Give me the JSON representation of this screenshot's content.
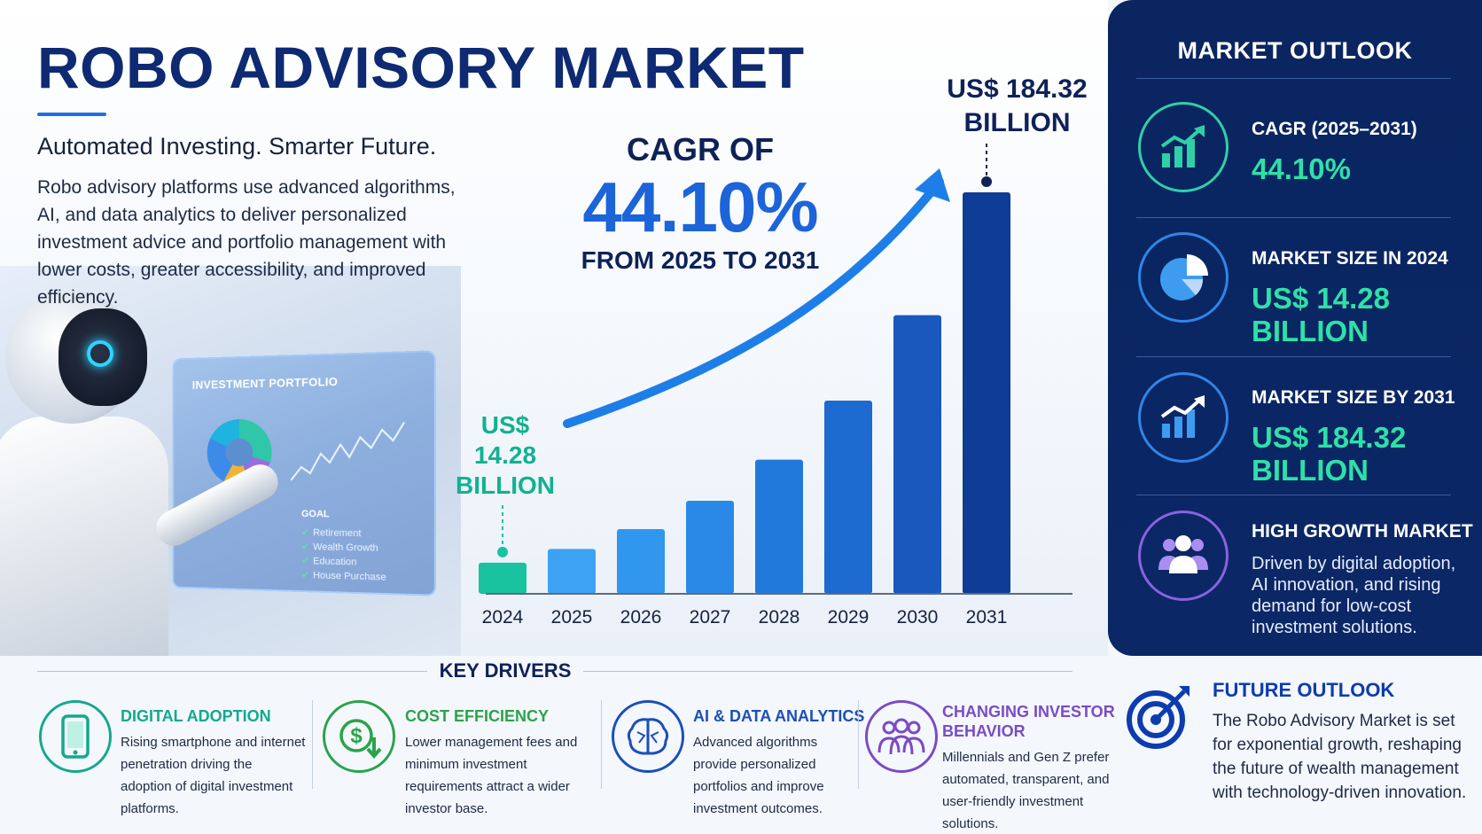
{
  "header": {
    "title": "ROBO ADVISORY MARKET",
    "subtitle": "Automated Investing. Smarter Future.",
    "description": "Robo advisory platforms use advanced algorithms, AI, and data analytics to deliver personalized investment advice and portfolio management with lower costs, greater accessibility, and improved efficiency."
  },
  "illustration": {
    "screen_title": "INVESTMENT PORTFOLIO",
    "goal_label": "GOAL",
    "goals": [
      "Retirement",
      "Wealth Growth",
      "Education",
      "House Purchase"
    ]
  },
  "chart_data": {
    "type": "bar",
    "categories": [
      "2024",
      "2025",
      "2026",
      "2027",
      "2028",
      "2029",
      "2030",
      "2031"
    ],
    "values": [
      14.28,
      20.6,
      29.7,
      42.7,
      61.6,
      88.7,
      127.9,
      184.32
    ],
    "ylim": [
      0,
      184.32
    ],
    "first_label": [
      "US$ 14.28",
      "BILLION"
    ],
    "last_label": [
      "US$ 184.32",
      "BILLION"
    ],
    "colors": {
      "first": "#19c3a0",
      "bars": [
        "#3da2f4",
        "#3196ee",
        "#2a89e6",
        "#2279dc",
        "#1d6ad0",
        "#1a58bd",
        "#0f3c94"
      ],
      "arrow": "#1e7ee8"
    }
  },
  "cagr": {
    "label": "CAGR OF",
    "value": "44.10%",
    "range": "FROM 2025 TO 2031"
  },
  "outlook": {
    "title": "MARKET OUTLOOK",
    "items": [
      {
        "icon": "growth-chart-icon",
        "label": "CAGR (2025–2031)",
        "value": "44.10%"
      },
      {
        "icon": "pie-chart-icon",
        "label": "MARKET SIZE IN 2024",
        "value_line1": "US$ 14.28",
        "value_line2": "BILLION"
      },
      {
        "icon": "bar-growth-icon",
        "label": "MARKET SIZE BY 2031",
        "value_line1": "US$ 184.32",
        "value_line2": "BILLION"
      },
      {
        "icon": "people-icon",
        "label": "HIGH GROWTH MARKET",
        "text": "Driven by digital adoption, AI innovation, and rising demand for low-cost investment solutions."
      }
    ]
  },
  "key_drivers": {
    "title": "KEY DRIVERS",
    "items": [
      {
        "icon": "smartphone-icon",
        "title": "DIGITAL ADOPTION",
        "text": "Rising smartphone and internet penetration driving the adoption of digital investment platforms.",
        "color": "#13a98d"
      },
      {
        "icon": "dollar-down-icon",
        "title": "COST EFFICIENCY",
        "text": "Lower management fees and minimum investment requirements attract a wider investor base.",
        "color": "#2aa34a"
      },
      {
        "icon": "brain-icon",
        "title": "AI & DATA ANALYTICS",
        "text": "Advanced algorithms provide personalized portfolios and improve investment outcomes.",
        "color": "#1b4fb8"
      },
      {
        "icon": "investors-icon",
        "title": "CHANGING INVESTOR BEHAVIOR",
        "title_line1": "CHANGING INVESTOR",
        "title_line2": "BEHAVIOR",
        "text": "Millennials and Gen Z prefer automated, transparent, and user-friendly investment solutions.",
        "color": "#7a4bc6"
      }
    ]
  },
  "future_outlook": {
    "title": "FUTURE OUTLOOK",
    "text": "The Robo Advisory Market is set for exponential growth, reshaping the future of wealth management with technology-driven innovation."
  }
}
